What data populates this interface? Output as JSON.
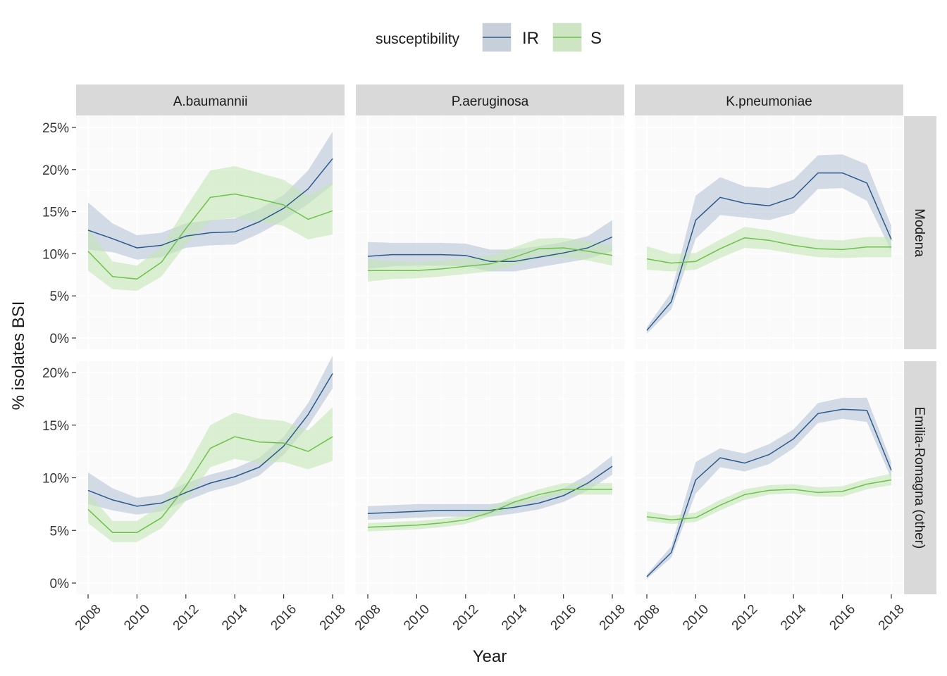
{
  "chart_data": {
    "type": "line",
    "facets": {
      "columns": [
        "A.baumannii",
        "P.aeruginosa",
        "K.pneumoniae"
      ],
      "rows": [
        "Modena",
        "Emilia-Romagna (other)"
      ]
    },
    "xlabel": "Year",
    "ylabel": "% isolates BSI",
    "x": [
      2008,
      2009,
      2010,
      2011,
      2012,
      2013,
      2014,
      2015,
      2016,
      2017,
      2018
    ],
    "x_ticks": [
      "2008",
      "2010",
      "2012",
      "2014",
      "2016",
      "2018"
    ],
    "xlim": [
      2008,
      2018
    ],
    "legend": {
      "title": "susceptibility",
      "position": "top",
      "entries": [
        {
          "name": "IR",
          "line_color": "#2c5a8c",
          "band_color": "#aebfd4"
        },
        {
          "name": "S",
          "line_color": "#6cc24a",
          "band_color": "#c5e6b5"
        }
      ]
    },
    "rows": [
      {
        "name": "Modena",
        "ylim": [
          0,
          25
        ],
        "y_ticks": [
          "0%",
          "5%",
          "10%",
          "15%",
          "20%",
          "25%"
        ],
        "panels": [
          {
            "column": "A.baumannii",
            "series": [
              {
                "name": "IR",
                "values": [
                  12.8,
                  11.8,
                  10.7,
                  11.0,
                  12.1,
                  12.5,
                  12.6,
                  13.8,
                  15.4,
                  17.7,
                  21.3
                ],
                "lower": [
                  10.5,
                  10.2,
                  9.3,
                  9.6,
                  10.7,
                  11.0,
                  11.1,
                  12.4,
                  14.0,
                  15.9,
                  18.2
                ],
                "upper": [
                  16.1,
                  13.6,
                  12.2,
                  12.5,
                  13.6,
                  14.0,
                  14.2,
                  15.3,
                  17.0,
                  19.9,
                  24.5
                ]
              },
              {
                "name": "S",
                "values": [
                  10.3,
                  7.3,
                  7.0,
                  9.0,
                  13.0,
                  16.7,
                  17.1,
                  16.5,
                  15.8,
                  14.1,
                  15.1
                ],
                "lower": [
                  8.0,
                  5.8,
                  5.6,
                  7.3,
                  11.1,
                  13.9,
                  14.3,
                  13.8,
                  13.3,
                  11.7,
                  12.3
                ],
                "upper": [
                  13.0,
                  9.1,
                  8.6,
                  10.8,
                  15.5,
                  19.9,
                  20.4,
                  19.6,
                  18.8,
                  16.9,
                  18.5
                ]
              }
            ]
          },
          {
            "column": "P.aeruginosa",
            "series": [
              {
                "name": "IR",
                "values": [
                  9.7,
                  9.9,
                  9.9,
                  9.9,
                  9.8,
                  9.1,
                  9.1,
                  9.6,
                  10.1,
                  10.7,
                  12.0
                ],
                "lower": [
                  8.2,
                  8.5,
                  8.6,
                  8.6,
                  8.5,
                  7.9,
                  7.9,
                  8.4,
                  8.9,
                  9.4,
                  10.3
                ],
                "upper": [
                  11.4,
                  11.3,
                  11.3,
                  11.3,
                  11.2,
                  10.5,
                  10.5,
                  10.9,
                  11.4,
                  12.1,
                  14.0
                ]
              },
              {
                "name": "S",
                "values": [
                  8.0,
                  8.0,
                  8.0,
                  8.2,
                  8.5,
                  8.8,
                  9.6,
                  10.6,
                  10.7,
                  10.3,
                  9.8
                ],
                "lower": [
                  6.7,
                  7.0,
                  7.1,
                  7.3,
                  7.6,
                  7.9,
                  8.6,
                  9.6,
                  9.6,
                  9.2,
                  8.6
                ],
                "upper": [
                  9.4,
                  9.1,
                  9.0,
                  9.2,
                  9.5,
                  9.8,
                  10.8,
                  11.8,
                  11.9,
                  11.5,
                  11.0
                ]
              }
            ]
          },
          {
            "column": "K.pneumoniae",
            "series": [
              {
                "name": "IR",
                "values": [
                  0.9,
                  4.3,
                  14.0,
                  16.7,
                  16.0,
                  15.7,
                  16.7,
                  19.6,
                  19.6,
                  18.4,
                  11.7
                ],
                "lower": [
                  0.5,
                  3.4,
                  11.8,
                  14.6,
                  14.3,
                  14.0,
                  14.8,
                  17.7,
                  17.8,
                  16.3,
                  10.3
                ],
                "upper": [
                  1.3,
                  5.4,
                  16.9,
                  19.1,
                  18.0,
                  17.8,
                  18.8,
                  21.7,
                  21.8,
                  20.6,
                  13.3
                ]
              },
              {
                "name": "S",
                "values": [
                  9.4,
                  8.9,
                  9.1,
                  10.6,
                  11.9,
                  11.6,
                  11.0,
                  10.6,
                  10.5,
                  10.8,
                  10.8
                ],
                "lower": [
                  8.1,
                  7.9,
                  8.1,
                  9.5,
                  10.7,
                  10.5,
                  10.0,
                  9.6,
                  9.5,
                  9.6,
                  9.6
                ],
                "upper": [
                  10.9,
                  10.0,
                  10.1,
                  11.7,
                  13.2,
                  12.8,
                  12.2,
                  11.7,
                  11.6,
                  12.0,
                  12.0
                ]
              }
            ]
          }
        ]
      },
      {
        "name": "Emilia-Romagna (other)",
        "ylim": [
          0,
          20
        ],
        "y_ticks": [
          "0%",
          "5%",
          "10%",
          "15%",
          "20%"
        ],
        "panels": [
          {
            "column": "A.baumannii",
            "series": [
              {
                "name": "IR",
                "values": [
                  8.8,
                  7.9,
                  7.3,
                  7.6,
                  8.6,
                  9.5,
                  10.1,
                  11.0,
                  13.0,
                  16.0,
                  19.9
                ],
                "lower": [
                  7.5,
                  6.9,
                  6.5,
                  6.8,
                  7.8,
                  8.7,
                  9.3,
                  10.2,
                  12.2,
                  14.9,
                  18.5
                ],
                "upper": [
                  10.5,
                  9.0,
                  8.1,
                  8.4,
                  9.5,
                  10.3,
                  10.9,
                  11.9,
                  13.9,
                  17.1,
                  21.6
                ]
              },
              {
                "name": "S",
                "values": [
                  7.0,
                  4.8,
                  4.8,
                  6.2,
                  9.2,
                  12.8,
                  13.9,
                  13.4,
                  13.3,
                  12.5,
                  13.9
                ],
                "lower": [
                  5.7,
                  3.9,
                  3.9,
                  5.2,
                  7.8,
                  11.0,
                  11.8,
                  11.4,
                  11.5,
                  10.8,
                  11.6
                ],
                "upper": [
                  8.6,
                  5.9,
                  5.9,
                  7.4,
                  10.8,
                  15.0,
                  16.2,
                  15.6,
                  15.4,
                  14.5,
                  16.7
                ]
              }
            ]
          },
          {
            "column": "P.aeruginosa",
            "series": [
              {
                "name": "IR",
                "values": [
                  6.6,
                  6.7,
                  6.8,
                  6.9,
                  6.9,
                  6.9,
                  7.2,
                  7.6,
                  8.3,
                  9.5,
                  11.1
                ],
                "lower": [
                  6.0,
                  6.1,
                  6.2,
                  6.3,
                  6.3,
                  6.3,
                  6.6,
                  7.0,
                  7.7,
                  8.8,
                  10.3
                ],
                "upper": [
                  7.3,
                  7.4,
                  7.5,
                  7.5,
                  7.5,
                  7.5,
                  7.8,
                  8.2,
                  9.0,
                  10.3,
                  12.1
                ]
              },
              {
                "name": "S",
                "values": [
                  5.3,
                  5.4,
                  5.5,
                  5.7,
                  6.0,
                  6.7,
                  7.7,
                  8.4,
                  8.9,
                  8.9,
                  8.9
                ],
                "lower": [
                  4.9,
                  5.0,
                  5.1,
                  5.3,
                  5.6,
                  6.3,
                  7.2,
                  7.9,
                  8.4,
                  8.4,
                  8.4
                ],
                "upper": [
                  5.7,
                  5.8,
                  5.9,
                  6.1,
                  6.4,
                  7.2,
                  8.2,
                  8.9,
                  9.5,
                  9.5,
                  9.5
                ]
              }
            ]
          },
          {
            "column": "K.pneumoniae",
            "series": [
              {
                "name": "IR",
                "values": [
                  0.6,
                  2.9,
                  9.8,
                  11.9,
                  11.4,
                  12.2,
                  13.7,
                  16.1,
                  16.5,
                  16.4,
                  10.7
                ],
                "lower": [
                  0.4,
                  2.4,
                  8.5,
                  11.0,
                  10.6,
                  11.3,
                  12.8,
                  15.2,
                  15.6,
                  15.3,
                  9.9
                ],
                "upper": [
                  0.8,
                  3.5,
                  11.5,
                  12.8,
                  12.3,
                  13.2,
                  14.6,
                  17.1,
                  17.6,
                  17.6,
                  11.5
                ]
              },
              {
                "name": "S",
                "values": [
                  6.3,
                  6.0,
                  6.2,
                  7.4,
                  8.4,
                  8.8,
                  8.9,
                  8.6,
                  8.7,
                  9.4,
                  9.8
                ],
                "lower": [
                  5.9,
                  5.6,
                  5.8,
                  6.9,
                  7.9,
                  8.4,
                  8.5,
                  8.2,
                  8.2,
                  8.9,
                  9.3
                ],
                "upper": [
                  6.8,
                  6.4,
                  6.7,
                  7.9,
                  8.9,
                  9.3,
                  9.4,
                  9.1,
                  9.2,
                  9.9,
                  10.4
                ]
              }
            ]
          }
        ]
      }
    ]
  }
}
